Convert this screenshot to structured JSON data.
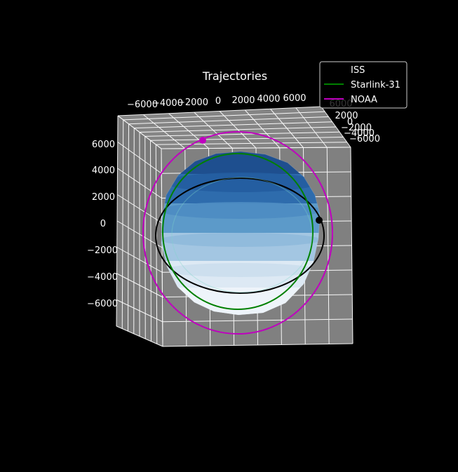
{
  "chart_data": {
    "type": "3d-line",
    "title": "Trajectories",
    "background": "#000000",
    "pane_color": "#808080",
    "grid": true,
    "grid_color": "#ffffff",
    "legend_placement": "top-right",
    "x_ticks": [
      "−6000",
      "−4000",
      "−2000",
      "0",
      "2000",
      "4000",
      "6000"
    ],
    "y_ticks": [
      "6000",
      "2000",
      "0",
      "−2000",
      "−4000",
      "−6000"
    ],
    "z_ticks": [
      "6000",
      "4000",
      "2000",
      "0",
      "−2000",
      "−4000",
      "−6000"
    ],
    "earth_radius": 6371,
    "earth_colormap": "Blues",
    "series": [
      {
        "name": "ISS",
        "color": "#000000",
        "orbit_radius": 6780,
        "current_marker": "right edge"
      },
      {
        "name": "Starlink-31",
        "color": "#008000",
        "orbit_radius": 6920
      },
      {
        "name": "NOAA",
        "color": "#bf00bf",
        "orbit_radius": 7230,
        "current_marker": "top-left"
      }
    ]
  }
}
